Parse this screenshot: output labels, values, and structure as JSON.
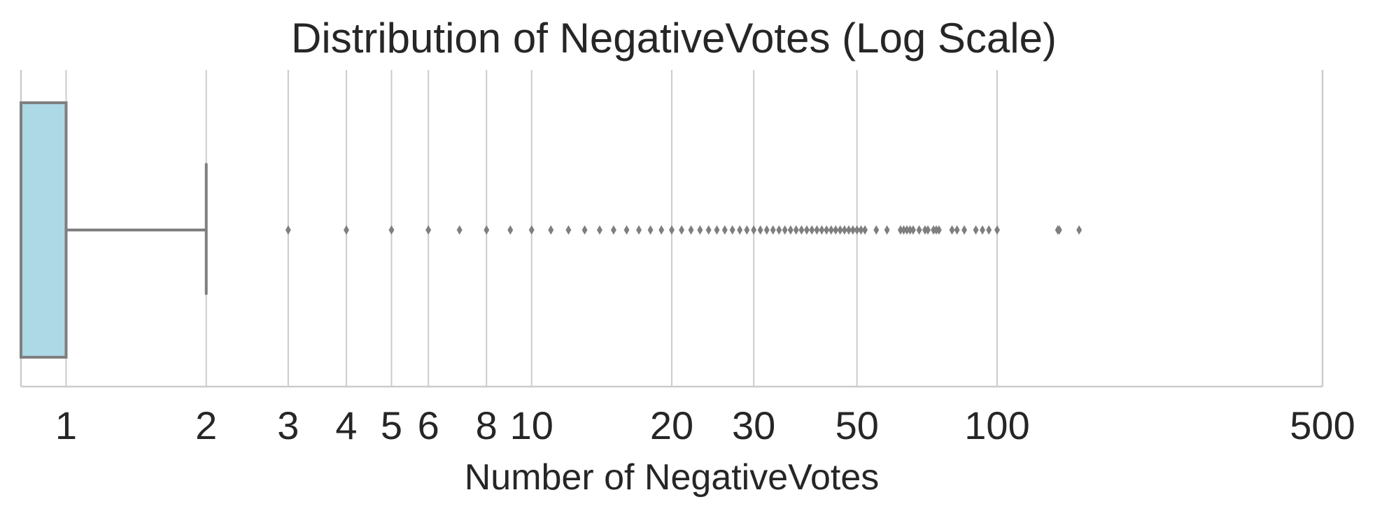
{
  "chart_data": {
    "type": "box",
    "orientation": "horizontal",
    "title": "Distribution of NegativeVotes (Log Scale)",
    "xlabel": "Number of NegativeVotes",
    "ylabel": "",
    "x_scale": "log",
    "xlim": [
      0.8,
      500
    ],
    "x_ticks": [
      1,
      2,
      3,
      4,
      5,
      6,
      8,
      10,
      20,
      30,
      50,
      100,
      500
    ],
    "x_tick_labels": [
      "1",
      "2",
      "3",
      "4",
      "5",
      "6",
      "8",
      "10",
      "20",
      "30",
      "50",
      "100",
      "500"
    ],
    "grid": "x",
    "box": {
      "min": 0.8,
      "q1": 0.8,
      "median": 1,
      "q3": 1,
      "whisker_low": 0.8,
      "whisker_high": 2
    },
    "outliers": [
      3,
      4,
      5,
      6,
      7,
      8,
      9,
      10,
      11,
      12,
      13,
      14,
      15,
      16,
      17,
      18,
      19,
      20,
      21,
      22,
      23,
      24,
      25,
      26,
      27,
      28,
      29,
      30,
      31,
      32,
      33,
      34,
      35,
      36,
      37,
      38,
      39,
      40,
      41,
      42,
      43,
      44,
      45,
      46,
      47,
      48,
      49,
      50,
      51,
      52,
      55,
      58,
      62,
      63,
      64,
      65,
      66,
      68,
      70,
      71,
      73,
      74,
      75,
      80,
      82,
      85,
      90,
      93,
      96,
      100,
      135,
      136,
      150
    ],
    "colors": {
      "box_fill": "#add8e6",
      "box_edge": "#7f7f7f",
      "outlier": "#7f7f7f",
      "grid": "#cccccc",
      "spine": "#cccccc",
      "text": "#262626"
    }
  }
}
